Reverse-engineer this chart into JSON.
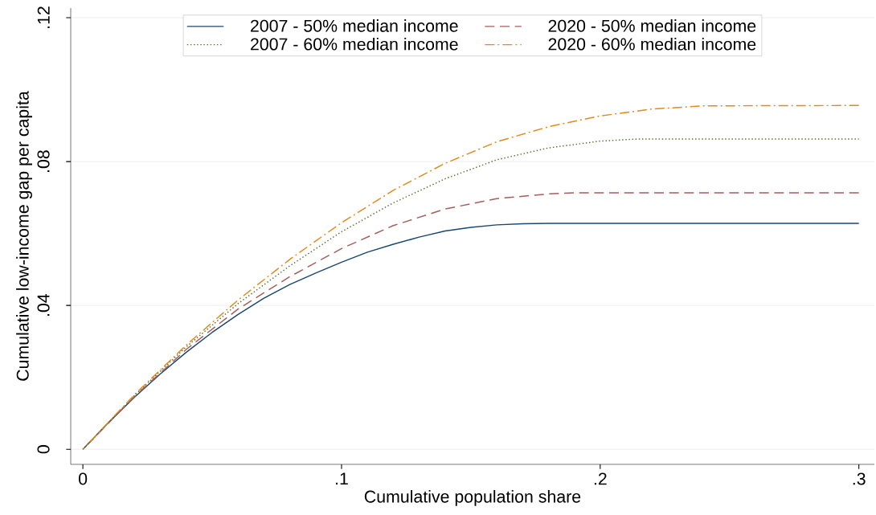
{
  "chart_data": {
    "type": "line",
    "xlabel": "Cumulative population share",
    "ylabel": "Cumulative low-income gap per capita",
    "xlim": [
      -0.0047,
      0.306
    ],
    "ylim": [
      -0.0042,
      0.1227
    ],
    "xticks": [
      0,
      {
        "value": 0.1,
        "label": ".1"
      },
      {
        "value": 0.2,
        "label": ".2"
      },
      {
        "value": 0.3,
        "label": ".3"
      }
    ],
    "yticks": [
      0,
      {
        "value": 0.04,
        "label": ".04"
      },
      {
        "value": 0.08,
        "label": ".08"
      },
      {
        "value": 0.12,
        "label": ".12"
      }
    ],
    "grid": "y",
    "legend": "top",
    "series": [
      {
        "name": "2007 - 50% median income",
        "color": "#1a476f",
        "line_style": "solid",
        "x": [
          0,
          0.01,
          0.02,
          0.03,
          0.04,
          0.05,
          0.06,
          0.07,
          0.08,
          0.09,
          0.1,
          0.11,
          0.12,
          0.13,
          0.14,
          0.15,
          0.16,
          0.17,
          0.18,
          0.3
        ],
        "values": [
          0,
          0.0075,
          0.0145,
          0.021,
          0.027,
          0.0325,
          0.0375,
          0.042,
          0.0458,
          0.049,
          0.052,
          0.0548,
          0.057,
          0.059,
          0.0607,
          0.0617,
          0.0624,
          0.0627,
          0.0628,
          0.0628
        ]
      },
      {
        "name": "2020 - 50% median income",
        "color": "#a85c5c",
        "line_style": "dashed",
        "x": [
          0,
          0.02,
          0.04,
          0.06,
          0.08,
          0.1,
          0.12,
          0.14,
          0.16,
          0.18,
          0.19,
          0.3
        ],
        "values": [
          0,
          0.0147,
          0.0278,
          0.039,
          0.048,
          0.0558,
          0.0622,
          0.0668,
          0.0697,
          0.071,
          0.0713,
          0.0713
        ]
      },
      {
        "name": "2007 - 60% median income",
        "color": "#55752f",
        "line_style": "dotted",
        "x": [
          0,
          0.02,
          0.04,
          0.06,
          0.08,
          0.1,
          0.12,
          0.14,
          0.16,
          0.18,
          0.2,
          0.215,
          0.3
        ],
        "values": [
          0,
          0.015,
          0.0285,
          0.0405,
          0.051,
          0.0605,
          0.0685,
          0.0752,
          0.0805,
          0.0838,
          0.0857,
          0.0863,
          0.0863
        ]
      },
      {
        "name": "2020 - 60% median income",
        "color": "#e38a1c",
        "line_style": "dashdot",
        "x": [
          0,
          0.02,
          0.04,
          0.06,
          0.08,
          0.1,
          0.12,
          0.14,
          0.16,
          0.18,
          0.2,
          0.22,
          0.24,
          0.3
        ],
        "values": [
          0,
          0.0152,
          0.029,
          0.0415,
          0.0528,
          0.063,
          0.072,
          0.0795,
          0.0855,
          0.0897,
          0.0927,
          0.0946,
          0.0955,
          0.0956
        ]
      }
    ]
  }
}
